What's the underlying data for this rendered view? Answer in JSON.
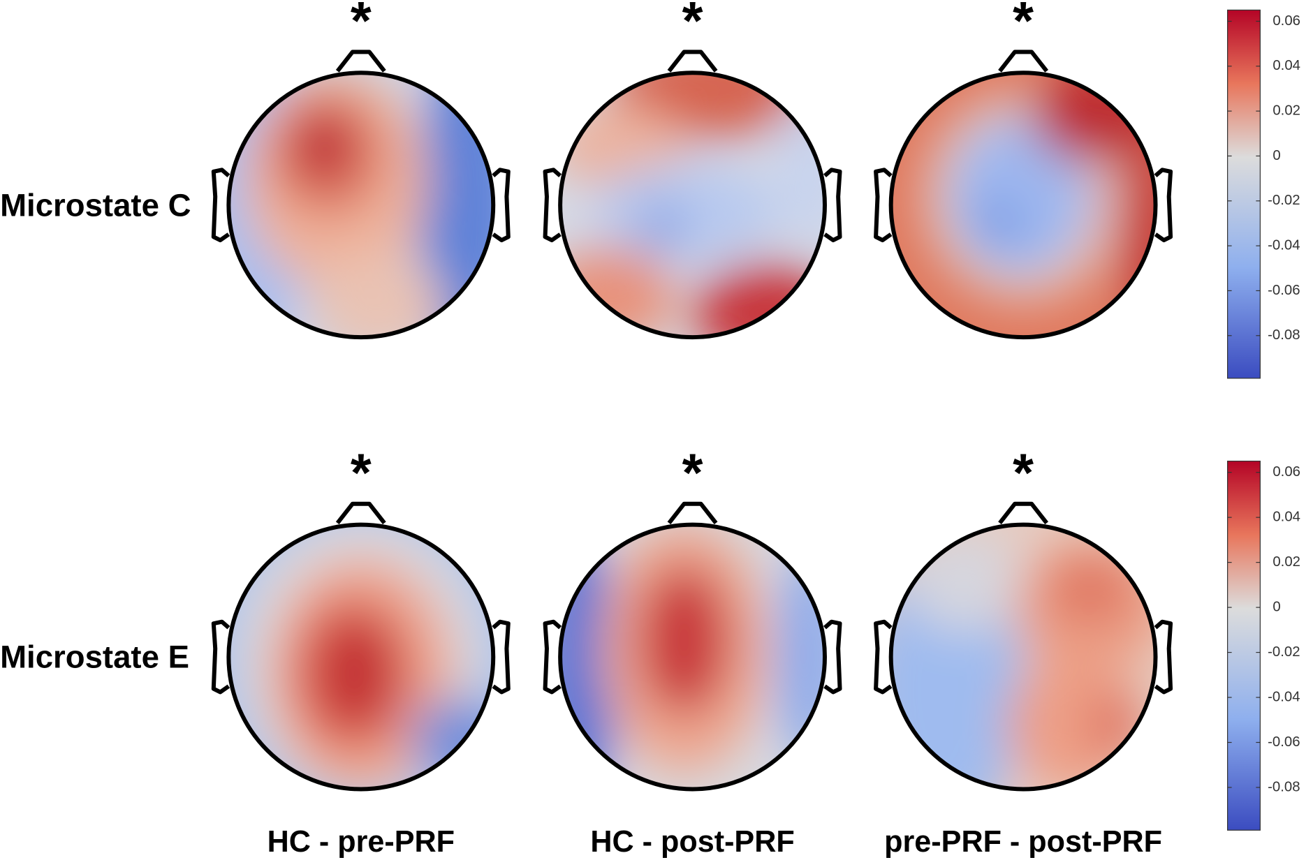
{
  "columns": [
    "HC - pre-PRF",
    "HC - post-PRF",
    "pre-PRF - post-PRF"
  ],
  "rows": [
    {
      "label": "Microstate C",
      "markers": [
        "*",
        "*",
        "*"
      ],
      "colorbar": {
        "clim": [
          -0.099,
          0.065
        ],
        "ticks": [
          -0.08,
          -0.06,
          -0.04,
          -0.02,
          0,
          0.02,
          0.04,
          0.06
        ]
      }
    },
    {
      "label": "Microstate E",
      "markers": [
        "*",
        "*",
        "*"
      ],
      "colorbar": {
        "clim": [
          -0.099,
          0.065
        ],
        "ticks": [
          -0.08,
          -0.06,
          -0.04,
          -0.02,
          0,
          0.02,
          0.04,
          0.06
        ]
      }
    }
  ]
}
